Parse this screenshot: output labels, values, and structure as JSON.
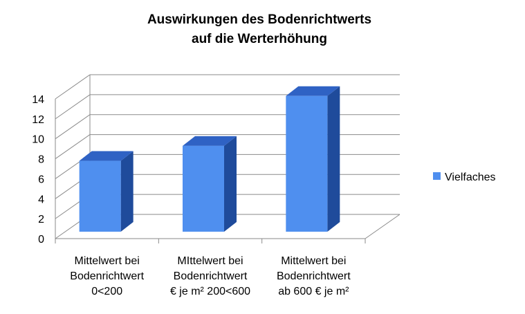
{
  "chart_data": {
    "type": "bar",
    "title": [
      "Auswirkungen des Bodenrichtwerts",
      "auf die Werterhöhung"
    ],
    "xlabel": "",
    "ylabel": "",
    "categories": [
      [
        "Mittelwert bei",
        "Bodenrichtwert",
        "0<200"
      ],
      [
        "MIttelwert  bei",
        "Bodenrichtwert",
        "€ je m² 200<600"
      ],
      [
        "Mittelwert bei",
        "Bodenrichtwert",
        "ab 600 € je m²"
      ]
    ],
    "series": [
      {
        "name": "Vielfaches",
        "values": [
          7.1,
          8.6,
          13.6
        ]
      }
    ],
    "ylim": [
      0,
      14
    ],
    "yticks": [
      "0",
      "2",
      "4",
      "6",
      "8",
      "10",
      "12",
      "14"
    ],
    "grid": true,
    "legend_position": "right",
    "colors": {
      "front": "#4f8fef",
      "side": "#1f4b9b",
      "top": "#2f62c4",
      "grid": "#8a8a8a"
    }
  }
}
